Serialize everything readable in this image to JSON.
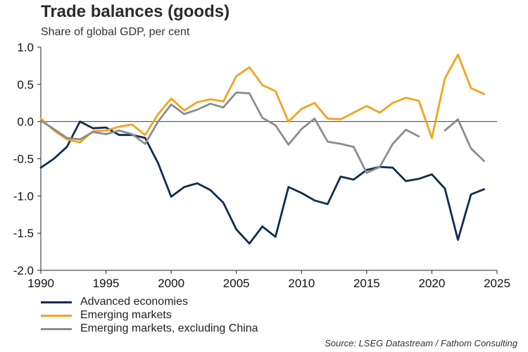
{
  "header": {
    "title": "Trade balances (goods)",
    "subtitle": "Share of global GDP, per cent"
  },
  "source": "Source: LSEG Datastream / Fathom Consulting",
  "chart_data": {
    "type": "line",
    "title": "Trade balances (goods)",
    "subtitle": "Share of global GDP, per cent",
    "xlabel": "",
    "ylabel": "",
    "xlim": [
      1990,
      2025
    ],
    "ylim": [
      -2.0,
      1.0
    ],
    "x_ticks": [
      1990,
      1995,
      2000,
      2005,
      2010,
      2015,
      2020,
      2025
    ],
    "y_ticks": [
      -2.0,
      -1.5,
      -1.0,
      -0.5,
      0.0,
      0.5,
      1.0
    ],
    "x_tick_labels": [
      "1990",
      "1995",
      "2000",
      "2005",
      "2010",
      "2015",
      "2020",
      "2025"
    ],
    "y_tick_labels": [
      "-2.0",
      "-1.5",
      "-1.0",
      "-0.5",
      "0.0",
      "0.5",
      "1.0"
    ],
    "zero_line": true,
    "grid": false,
    "legend_position": "bottom-left",
    "x": [
      1990,
      1991,
      1992,
      1993,
      1994,
      1995,
      1996,
      1997,
      1998,
      1999,
      2000,
      2001,
      2002,
      2003,
      2004,
      2005,
      2006,
      2007,
      2008,
      2009,
      2010,
      2011,
      2012,
      2013,
      2014,
      2015,
      2016,
      2017,
      2018,
      2019,
      2020,
      2021,
      2022,
      2023,
      2024
    ],
    "series": [
      {
        "name": "Advanced economies",
        "color": "#0e2c4f",
        "values": [
          -0.62,
          -0.5,
          -0.34,
          0.0,
          -0.09,
          -0.08,
          -0.18,
          -0.18,
          -0.22,
          -0.56,
          -1.01,
          -0.88,
          -0.83,
          -0.92,
          -1.09,
          -1.45,
          -1.64,
          -1.41,
          -1.55,
          -0.88,
          -0.96,
          -1.06,
          -1.11,
          -0.74,
          -0.78,
          -0.65,
          -0.61,
          -0.62,
          -0.8,
          -0.77,
          -0.71,
          -0.9,
          -1.59,
          -0.98,
          -0.91
        ]
      },
      {
        "name": "Emerging markets",
        "color": "#f5a21d",
        "values": [
          0.04,
          -0.12,
          -0.24,
          -0.28,
          -0.13,
          -0.12,
          -0.07,
          -0.04,
          -0.18,
          0.1,
          0.31,
          0.15,
          0.26,
          0.3,
          0.27,
          0.61,
          0.73,
          0.49,
          0.41,
          0.0,
          0.17,
          0.25,
          0.04,
          0.03,
          0.12,
          0.21,
          0.12,
          0.25,
          0.32,
          0.28,
          -0.22,
          0.58,
          0.9,
          0.45,
          0.37
        ]
      },
      {
        "name": "Emerging markets, excluding China",
        "color": "#8c8c8c",
        "values": [
          0.01,
          -0.1,
          -0.22,
          -0.24,
          -0.14,
          -0.17,
          -0.12,
          -0.17,
          -0.3,
          0.0,
          0.23,
          0.1,
          0.16,
          0.24,
          0.19,
          0.39,
          0.38,
          0.05,
          -0.05,
          -0.31,
          -0.1,
          0.04,
          -0.27,
          -0.3,
          -0.34,
          -0.69,
          -0.61,
          -0.3,
          -0.11,
          -0.2,
          null,
          -0.12,
          0.03,
          -0.36,
          -0.53
        ]
      }
    ]
  }
}
